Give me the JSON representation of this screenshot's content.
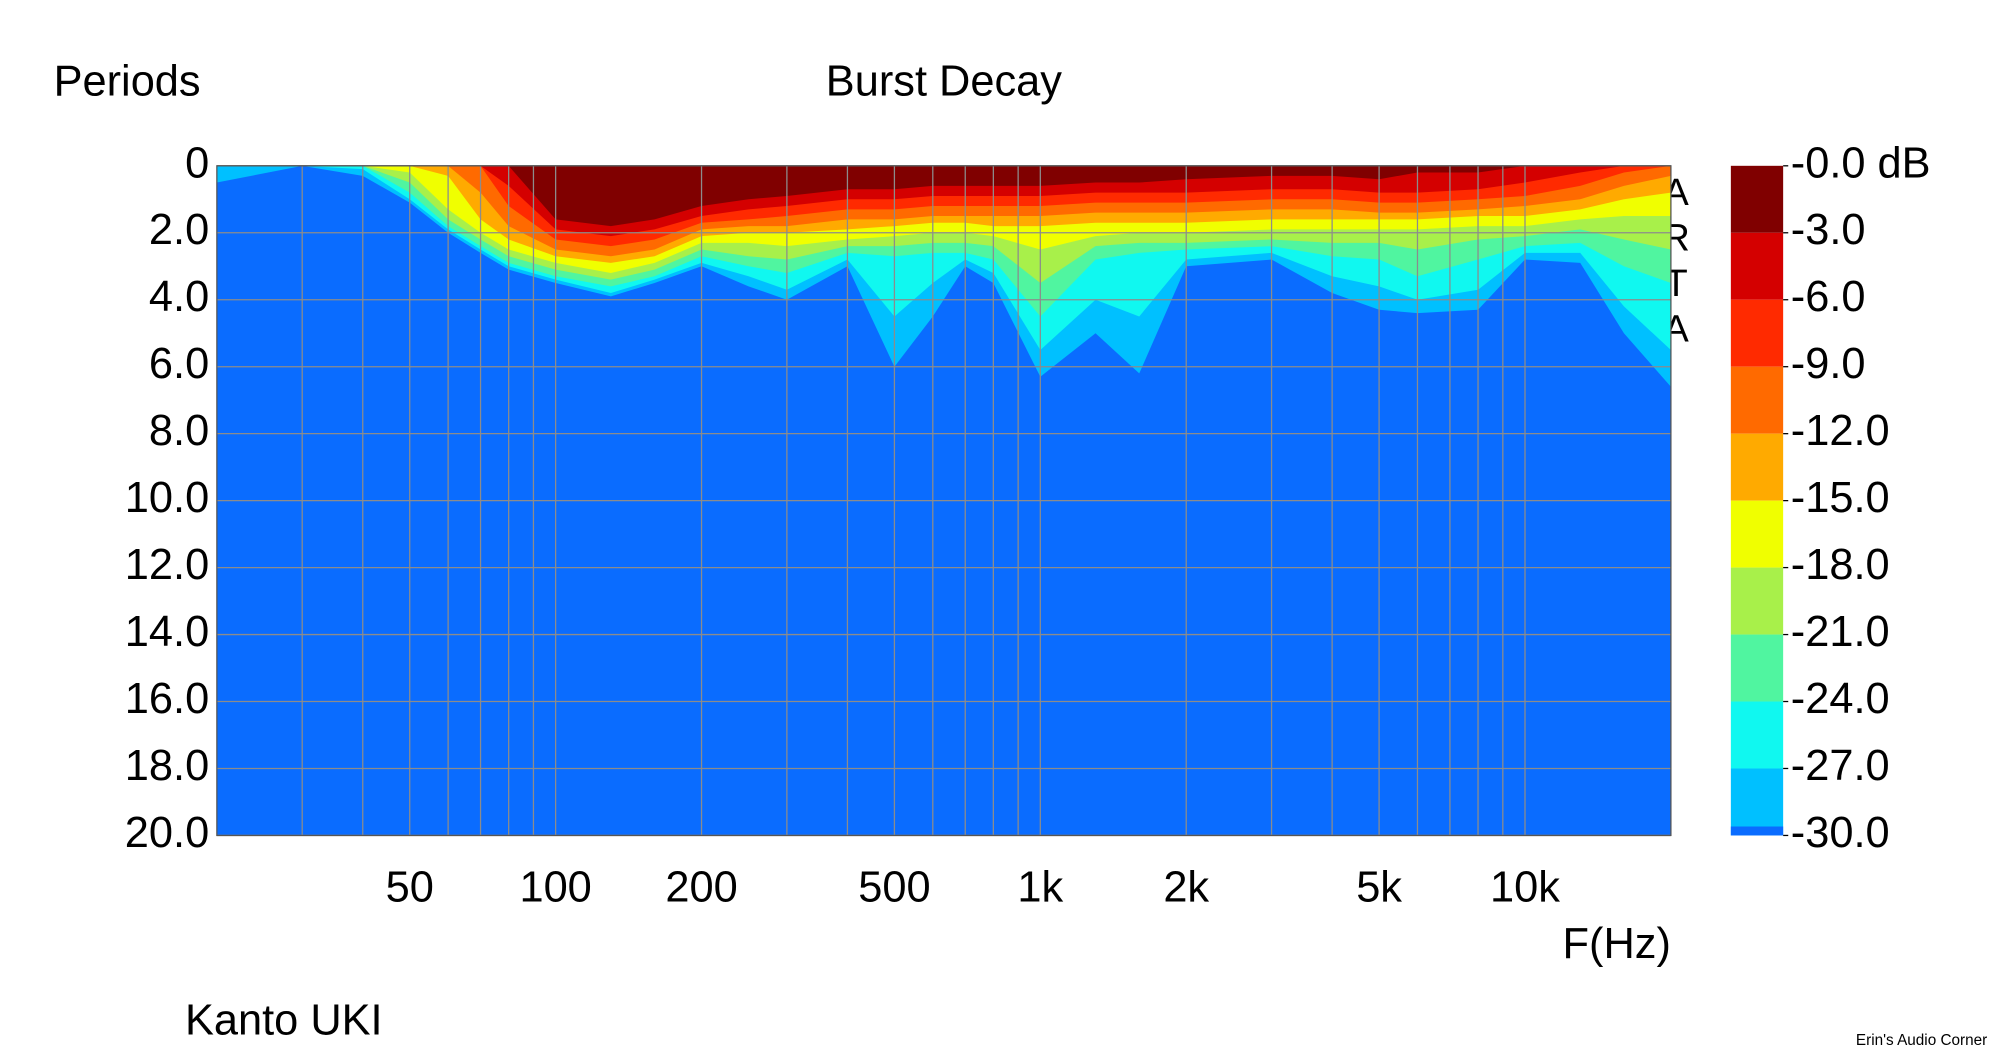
{
  "chart_data": {
    "type": "contour",
    "title": "Burst Decay",
    "ylabel": "Periods",
    "xlabel": "F(Hz)",
    "caption": "Kanto UKI",
    "credit": "Erin's Audio Corner",
    "watermark": "ARTA",
    "xlog": true,
    "grid": true,
    "xlim": [
      20,
      20000
    ],
    "ylim": [
      0,
      20
    ],
    "yinverted": true,
    "yticks": [
      0,
      {
        "value": 2,
        "label": "2.0"
      },
      {
        "value": 4,
        "label": "4.0"
      },
      {
        "value": 6,
        "label": "6.0"
      },
      {
        "value": 8,
        "label": "8.0"
      },
      {
        "value": 10,
        "label": "10.0"
      },
      {
        "value": 12,
        "label": "12.0"
      },
      {
        "value": 14,
        "label": "14.0"
      },
      {
        "value": 16,
        "label": "16.0"
      },
      {
        "value": 18,
        "label": "18.0"
      },
      {
        "value": 20,
        "label": "20.0"
      }
    ],
    "xticks": [
      50,
      100,
      200,
      500,
      {
        "value": 1000,
        "label": "1k"
      },
      {
        "value": 2000,
        "label": "2k"
      },
      {
        "value": 5000,
        "label": "5k"
      },
      {
        "value": 10000,
        "label": "10k"
      }
    ],
    "xgrid": [
      30,
      40,
      50,
      60,
      70,
      80,
      90,
      100,
      200,
      300,
      400,
      500,
      600,
      700,
      800,
      900,
      1000,
      2000,
      3000,
      4000,
      5000,
      6000,
      7000,
      8000,
      9000,
      10000
    ],
    "colorbar": {
      "ticks": [
        {
          "value": 0,
          "label": "-0.0 dB"
        },
        {
          "value": -3,
          "label": "-3.0"
        },
        {
          "value": -6,
          "label": "-6.0"
        },
        {
          "value": -9,
          "label": "-9.0"
        },
        {
          "value": -12,
          "label": "-12.0"
        },
        {
          "value": -15,
          "label": "-15.0"
        },
        {
          "value": -18,
          "label": "-18.0"
        },
        {
          "value": -21,
          "label": "-21.0"
        },
        {
          "value": -24,
          "label": "-24.0"
        },
        {
          "value": -27,
          "label": "-27.0"
        },
        {
          "value": -30,
          "label": "-30.0"
        }
      ],
      "colors": [
        "#800000",
        "#d40000",
        "#ff2a00",
        "#ff6a00",
        "#ffaa00",
        "#f0ff00",
        "#a8f04a",
        "#50f5a0",
        "#10f8f0",
        "#00c0ff",
        "#0a6cff"
      ]
    },
    "x": [
      20,
      30,
      40,
      50,
      60,
      70,
      80,
      100,
      130,
      160,
      200,
      250,
      300,
      400,
      500,
      600,
      700,
      800,
      1000,
      1300,
      1600,
      2000,
      3000,
      4000,
      5000,
      6000,
      8000,
      10000,
      13000,
      16000,
      20000
    ],
    "series": [
      {
        "values": [
          0,
          0,
          0,
          0,
          0,
          0,
          0,
          1.6,
          1.8,
          1.6,
          1.2,
          1.0,
          0.9,
          0.7,
          0.7,
          0.6,
          0.6,
          0.6,
          0.6,
          0.5,
          0.5,
          0.4,
          0.3,
          0.3,
          0.4,
          0.2,
          0.2,
          0,
          0,
          0,
          0
        ]
      },
      {
        "values": [
          0,
          0,
          0,
          0,
          0,
          0,
          0.6,
          1.9,
          2.1,
          1.9,
          1.5,
          1.3,
          1.2,
          1.0,
          1.0,
          0.9,
          0.9,
          0.9,
          0.9,
          0.8,
          0.8,
          0.8,
          0.7,
          0.7,
          0.8,
          0.8,
          0.7,
          0.5,
          0.2,
          0,
          0
        ]
      },
      {
        "values": [
          0,
          0,
          0,
          0,
          0,
          0,
          1.2,
          2.2,
          2.4,
          2.2,
          1.7,
          1.6,
          1.5,
          1.3,
          1.3,
          1.2,
          1.2,
          1.2,
          1.2,
          1.1,
          1.1,
          1.1,
          1.0,
          1.0,
          1.1,
          1.1,
          1.0,
          0.9,
          0.6,
          0.2,
          0
        ]
      },
      {
        "values": [
          0,
          0,
          0,
          0,
          0,
          0.8,
          1.8,
          2.5,
          2.7,
          2.5,
          1.9,
          1.8,
          1.8,
          1.6,
          1.6,
          1.5,
          1.5,
          1.5,
          1.5,
          1.4,
          1.4,
          1.4,
          1.3,
          1.3,
          1.4,
          1.4,
          1.3,
          1.2,
          1.0,
          0.6,
          0.3
        ]
      },
      {
        "values": [
          0,
          0,
          0,
          0,
          0.3,
          1.6,
          2.2,
          2.7,
          2.9,
          2.7,
          2.1,
          2.0,
          2.0,
          1.9,
          1.8,
          1.7,
          1.7,
          1.8,
          1.8,
          1.7,
          1.7,
          1.7,
          1.6,
          1.6,
          1.6,
          1.6,
          1.5,
          1.5,
          1.3,
          1.0,
          0.8
        ]
      },
      {
        "values": [
          0,
          0,
          0,
          0.2,
          1.3,
          2.0,
          2.5,
          2.9,
          3.2,
          2.9,
          2.3,
          2.3,
          2.4,
          2.2,
          2.1,
          2.0,
          2.0,
          2.1,
          2.5,
          2.1,
          2.0,
          2.0,
          1.9,
          1.9,
          1.9,
          1.9,
          1.8,
          1.8,
          1.6,
          1.5,
          1.5
        ]
      },
      {
        "values": [
          0,
          0,
          0,
          0.5,
          1.6,
          2.2,
          2.7,
          3.1,
          3.4,
          3.1,
          2.5,
          2.7,
          2.8,
          2.4,
          2.4,
          2.3,
          2.3,
          2.4,
          3.5,
          2.4,
          2.3,
          2.3,
          2.2,
          2.3,
          2.3,
          2.5,
          2.2,
          2.1,
          1.9,
          2.2,
          2.5
        ]
      },
      {
        "values": [
          0,
          0,
          0,
          0.8,
          1.8,
          2.4,
          2.9,
          3.3,
          3.6,
          3.3,
          2.7,
          3.0,
          3.2,
          2.6,
          2.7,
          2.6,
          2.6,
          2.8,
          4.5,
          2.8,
          2.6,
          2.5,
          2.4,
          2.7,
          2.8,
          3.3,
          2.8,
          2.4,
          2.3,
          3.0,
          3.5
        ]
      },
      {
        "values": [
          0,
          0,
          0.1,
          1.0,
          1.9,
          2.5,
          3.0,
          3.4,
          3.8,
          3.4,
          2.9,
          3.3,
          3.7,
          2.8,
          4.5,
          3.5,
          2.8,
          3.2,
          5.5,
          4.0,
          4.5,
          2.8,
          2.6,
          3.3,
          3.6,
          4.0,
          3.7,
          2.6,
          2.6,
          4.2,
          5.5
        ]
      },
      {
        "values": [
          0.5,
          0,
          0.3,
          1.1,
          2.0,
          2.6,
          3.1,
          3.5,
          3.9,
          3.5,
          3.0,
          3.6,
          4.0,
          3.0,
          6.0,
          4.5,
          3.0,
          3.5,
          6.3,
          5.0,
          6.2,
          3.0,
          2.8,
          3.8,
          4.3,
          4.4,
          4.3,
          2.8,
          2.9,
          5.0,
          6.6
        ]
      }
    ]
  }
}
